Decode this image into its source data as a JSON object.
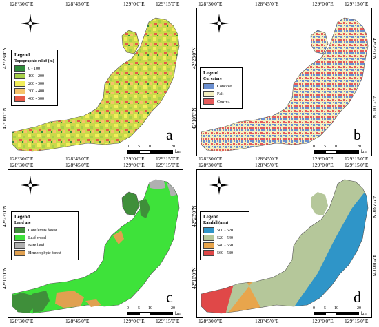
{
  "coords": {
    "top_a": [
      "128°30'0\"E",
      "128°45'0\"E",
      "129°0'0\"E",
      "129°15'0\"E"
    ],
    "bottom_c": [
      "128°30'0\"E",
      "128°45'0\"E",
      "129°0'0\"E",
      "129°15'0\"E"
    ],
    "lat_top": "42°23'0\"N",
    "lat_bottom": "42°10'0\"N",
    "lat_top_a": "42°23'0\"N",
    "lat_bottom_a": "42°10'0\"N"
  },
  "scale": {
    "ticks": [
      "0",
      "5",
      "10",
      "20"
    ],
    "unit": "km"
  },
  "panels": {
    "a": {
      "label": "a",
      "legend_title": "Legend",
      "legend_subtitle": "Topographic relief (m)",
      "items": [
        {
          "label": "0 - 100",
          "color": "#2e8b3a"
        },
        {
          "label": "100 - 200",
          "color": "#a7d04a"
        },
        {
          "label": "200 - 300",
          "color": "#f2ee5a"
        },
        {
          "label": "300 - 400",
          "color": "#f6c36a"
        },
        {
          "label": "400 - 500",
          "color": "#e65a48"
        }
      ]
    },
    "b": {
      "label": "b",
      "legend_title": "Legend",
      "legend_subtitle": "Curvature",
      "items": [
        {
          "label": "Concave",
          "color": "#6b8fd0"
        },
        {
          "label": "Falt",
          "color": "#f4efc0"
        },
        {
          "label": "Convex",
          "color": "#e65a5a"
        }
      ]
    },
    "c": {
      "label": "c",
      "legend_title": "Legend",
      "legend_subtitle": "Land use",
      "items": [
        {
          "label": "Coniferous forest",
          "color": "#3f8f3a"
        },
        {
          "label": "Leaf wood",
          "color": "#3ee23a"
        },
        {
          "label": "Bare land",
          "color": "#b0b0b0"
        },
        {
          "label": "Hemerophyte forest",
          "color": "#e0a050"
        }
      ]
    },
    "d": {
      "label": "d",
      "legend_title": "Legend",
      "legend_subtitle": "Rainfall (mm)",
      "items": [
        {
          "label": "500 - 520",
          "color": "#2f95c8"
        },
        {
          "label": "520 - 540",
          "color": "#b5c79a"
        },
        {
          "label": "540 - 560",
          "color": "#e8a54c"
        },
        {
          "label": "560 - 580",
          "color": "#e04848"
        }
      ]
    }
  }
}
